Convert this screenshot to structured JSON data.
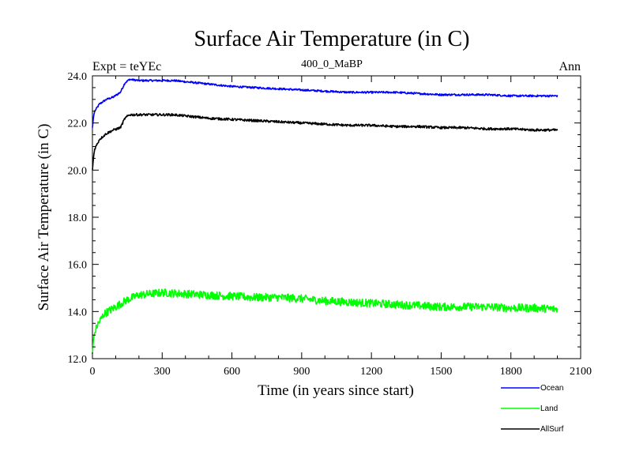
{
  "chart_data": {
    "type": "line",
    "title": "Surface Air Temperature (in C)",
    "subtitle_left": "Expt = teYEc",
    "subtitle_center": "400_0_MaBP",
    "subtitle_right": "Ann",
    "xlabel": "Time (in years since start)",
    "ylabel": "Surface Air Temperature (in C)",
    "xlim": [
      0,
      2100
    ],
    "ylim": [
      12.0,
      24.0
    ],
    "x_ticks": [
      0,
      300,
      600,
      900,
      1200,
      1500,
      1800,
      2100
    ],
    "y_ticks": [
      "12.0",
      "14.0",
      "16.0",
      "18.0",
      "20.0",
      "22.0",
      "24.0"
    ],
    "legend_position": "bottom-right-outside",
    "series": [
      {
        "name": "Ocean",
        "color": "#0000ff",
        "noise": 0.04,
        "x": [
          0,
          5,
          10,
          30,
          60,
          90,
          120,
          140,
          160,
          200,
          250,
          300,
          350,
          400,
          500,
          600,
          700,
          800,
          900,
          1000,
          1100,
          1200,
          1300,
          1400,
          1500,
          1600,
          1700,
          1800,
          1900,
          2000
        ],
        "y": [
          21.8,
          22.3,
          22.5,
          22.8,
          23.0,
          23.1,
          23.3,
          23.7,
          23.85,
          23.8,
          23.8,
          23.8,
          23.8,
          23.75,
          23.65,
          23.55,
          23.5,
          23.45,
          23.4,
          23.35,
          23.3,
          23.3,
          23.3,
          23.25,
          23.2,
          23.2,
          23.2,
          23.15,
          23.15,
          23.15
        ]
      },
      {
        "name": "Land",
        "color": "#00ff00",
        "noise": 0.17,
        "x": [
          0,
          5,
          10,
          20,
          50,
          100,
          150,
          200,
          250,
          300,
          400,
          500,
          600,
          700,
          800,
          900,
          1000,
          1100,
          1200,
          1300,
          1400,
          1500,
          1600,
          1700,
          1800,
          1900,
          2000
        ],
        "y": [
          12.2,
          12.9,
          13.1,
          13.4,
          13.9,
          14.2,
          14.5,
          14.7,
          14.75,
          14.8,
          14.75,
          14.7,
          14.65,
          14.6,
          14.6,
          14.55,
          14.45,
          14.4,
          14.35,
          14.3,
          14.25,
          14.2,
          14.2,
          14.2,
          14.15,
          14.15,
          14.1
        ]
      },
      {
        "name": "AllSurf",
        "color": "#000000",
        "noise": 0.05,
        "x": [
          0,
          5,
          10,
          30,
          60,
          90,
          120,
          140,
          160,
          200,
          250,
          300,
          350,
          400,
          500,
          600,
          700,
          800,
          900,
          1000,
          1100,
          1200,
          1300,
          1400,
          1500,
          1600,
          1700,
          1800,
          1900,
          2000
        ],
        "y": [
          20.0,
          20.6,
          20.9,
          21.3,
          21.55,
          21.7,
          21.8,
          22.2,
          22.35,
          22.35,
          22.35,
          22.35,
          22.35,
          22.3,
          22.2,
          22.15,
          22.1,
          22.05,
          22.0,
          21.95,
          21.9,
          21.9,
          21.85,
          21.85,
          21.8,
          21.8,
          21.75,
          21.75,
          21.7,
          21.7
        ]
      }
    ]
  }
}
